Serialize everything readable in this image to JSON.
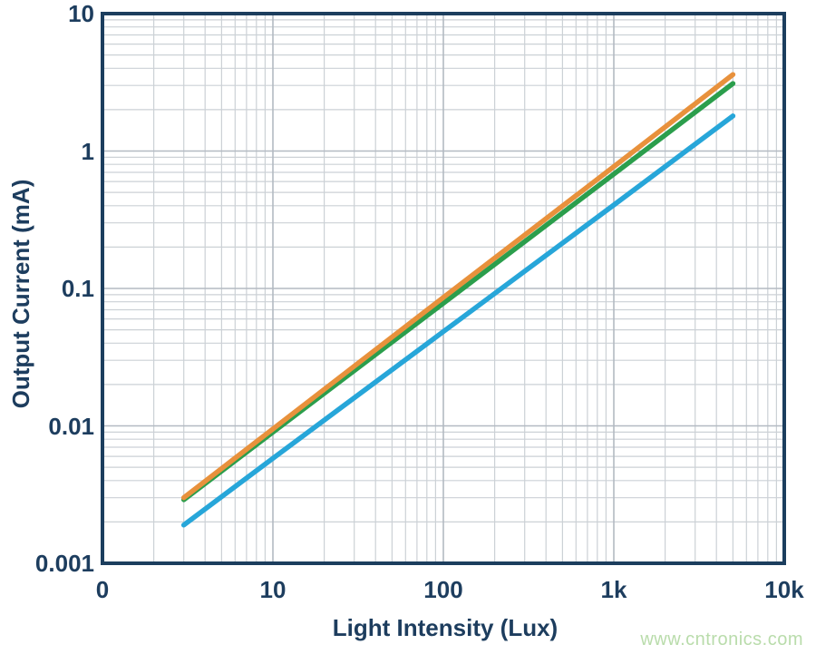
{
  "chart_data": {
    "type": "line",
    "title": "",
    "xlabel": "Light Intensity (Lux)",
    "ylabel": "Output Current (mA)",
    "x_scale": "log",
    "y_scale": "log",
    "xlim": [
      1,
      10000
    ],
    "ylim": [
      0.001,
      10
    ],
    "grid": true,
    "minor_grid": true,
    "legend_position": "none",
    "x_ticks": [
      {
        "value": 1,
        "label": "0"
      },
      {
        "value": 10,
        "label": "10"
      },
      {
        "value": 100,
        "label": "100"
      },
      {
        "value": 1000,
        "label": "1k"
      },
      {
        "value": 10000,
        "label": "10k"
      }
    ],
    "y_ticks": [
      {
        "value": 10,
        "label": "10"
      },
      {
        "value": 1,
        "label": "1"
      },
      {
        "value": 0.1,
        "label": "0.1"
      },
      {
        "value": 0.01,
        "label": "0.01"
      },
      {
        "value": 0.001,
        "label": "0.001"
      }
    ],
    "series": [
      {
        "name": "orange",
        "color": "#E8913C",
        "points": [
          [
            3,
            0.003
          ],
          [
            10,
            0.0095
          ],
          [
            100,
            0.086
          ],
          [
            1000,
            0.77
          ],
          [
            5000,
            3.6
          ]
        ]
      },
      {
        "name": "green",
        "color": "#2B9E4C",
        "points": [
          [
            3,
            0.0029
          ],
          [
            10,
            0.009
          ],
          [
            100,
            0.078
          ],
          [
            1000,
            0.68
          ],
          [
            5000,
            3.1
          ]
        ]
      },
      {
        "name": "blue",
        "color": "#27A6D9",
        "points": [
          [
            3,
            0.0019
          ],
          [
            10,
            0.0058
          ],
          [
            100,
            0.0485
          ],
          [
            1000,
            0.405
          ],
          [
            5000,
            1.8
          ]
        ]
      }
    ]
  },
  "watermark": {
    "text": "www.cntronics.com",
    "color": "#B9DCAB"
  },
  "style": {
    "axis_color": "#1C3E5E",
    "label_color": "#1D3D5E",
    "major_grid_color": "#B3BAC2",
    "minor_grid_color": "#CCD1D6",
    "plot_background": "#FFFFFF"
  }
}
